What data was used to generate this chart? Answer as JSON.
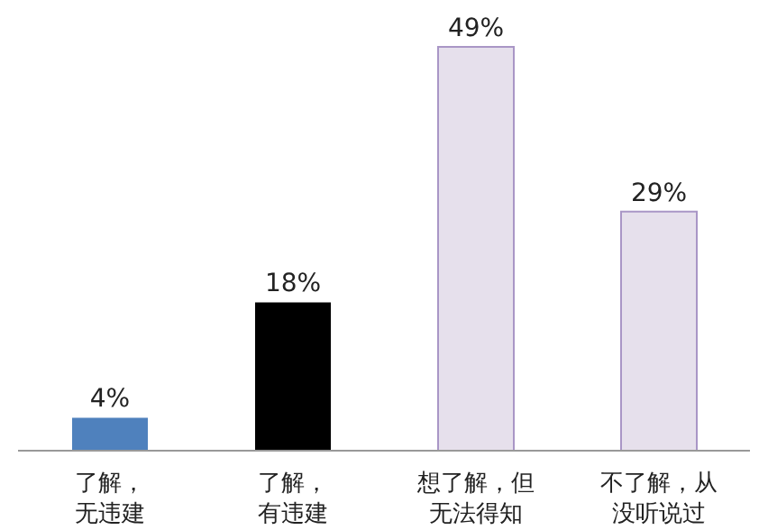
{
  "chart_data": {
    "type": "bar",
    "categories": [
      "了解，无违建",
      "了解，有违建",
      "想了解，但无法得知",
      "不了解，从没听说过"
    ],
    "values": [
      4,
      18,
      49,
      29
    ],
    "colors": [
      "#4f81bd",
      "#000000",
      "#e6e0ec",
      "#e6e0ec"
    ],
    "value_labels": [
      "4%",
      "18%",
      "49%",
      "29%"
    ],
    "grid": false,
    "legend": false
  }
}
